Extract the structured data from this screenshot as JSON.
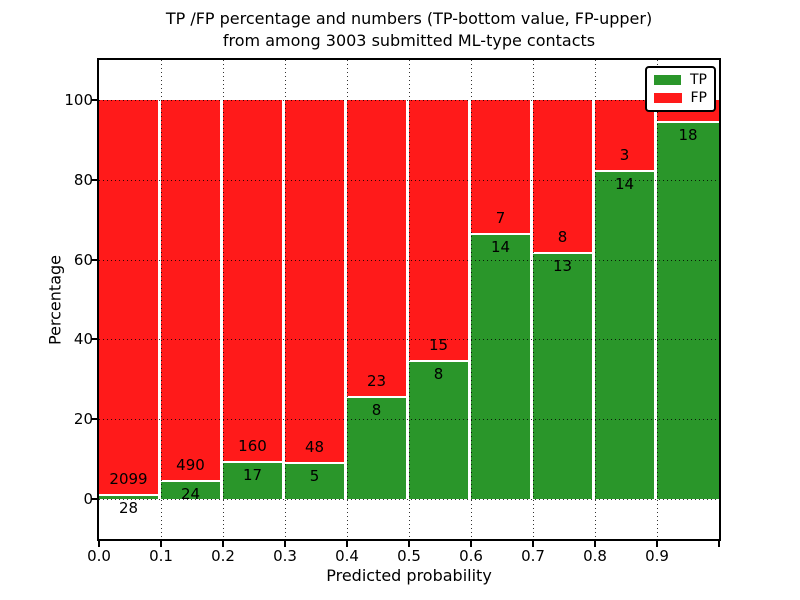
{
  "chart_data": {
    "type": "bar",
    "stacked": true,
    "orientation": "vertical",
    "title_line1": "TP /FP percentage and numbers (TP-bottom value, FP-upper)",
    "title_line2": "from among 3003 submitted ML-type contacts",
    "xlabel": "Predicted probability",
    "ylabel": "Percentage",
    "xlim": [
      0.0,
      1.0
    ],
    "ylim": [
      -10,
      110
    ],
    "bin_width": 0.1,
    "grid": "dotted, both axes, drawn over bars",
    "x_tick_labels": [
      "0.0",
      "0.1",
      "0.2",
      "0.3",
      "0.4",
      "0.5",
      "0.6",
      "0.7",
      "0.8",
      "0.9"
    ],
    "y_ticks": [
      0,
      20,
      40,
      60,
      80,
      100
    ],
    "legend": {
      "position": "upper right",
      "items": [
        {
          "label": "TP",
          "color": "#2a962a"
        },
        {
          "label": "FP",
          "color": "#ff1a1a"
        }
      ]
    },
    "bars": [
      {
        "bin": "0.0-0.1",
        "tp": 28,
        "fp": 2099,
        "tp_pct": 1.3
      },
      {
        "bin": "0.1-0.2",
        "tp": 24,
        "fp": 490,
        "tp_pct": 4.7
      },
      {
        "bin": "0.2-0.3",
        "tp": 17,
        "fp": 160,
        "tp_pct": 9.6
      },
      {
        "bin": "0.3-0.4",
        "tp": 5,
        "fp": 48,
        "tp_pct": 9.4
      },
      {
        "bin": "0.4-0.5",
        "tp": 8,
        "fp": 23,
        "tp_pct": 25.8
      },
      {
        "bin": "0.5-0.6",
        "tp": 8,
        "fp": 15,
        "tp_pct": 34.8
      },
      {
        "bin": "0.6-0.7",
        "tp": 14,
        "fp": 7,
        "tp_pct": 66.7
      },
      {
        "bin": "0.7-0.8",
        "tp": 13,
        "fp": 8,
        "tp_pct": 61.9
      },
      {
        "bin": "0.8-0.9",
        "tp": 14,
        "fp": 3,
        "tp_pct": 82.4
      },
      {
        "bin": "0.9-1.0",
        "tp": 18,
        "fp": null,
        "tp_pct": 94.7
      }
    ]
  },
  "colors": {
    "tp": "#2a962a",
    "fp": "#ff1a1a",
    "grid": "#000000",
    "background": "#ffffff",
    "spine": "#000000"
  }
}
